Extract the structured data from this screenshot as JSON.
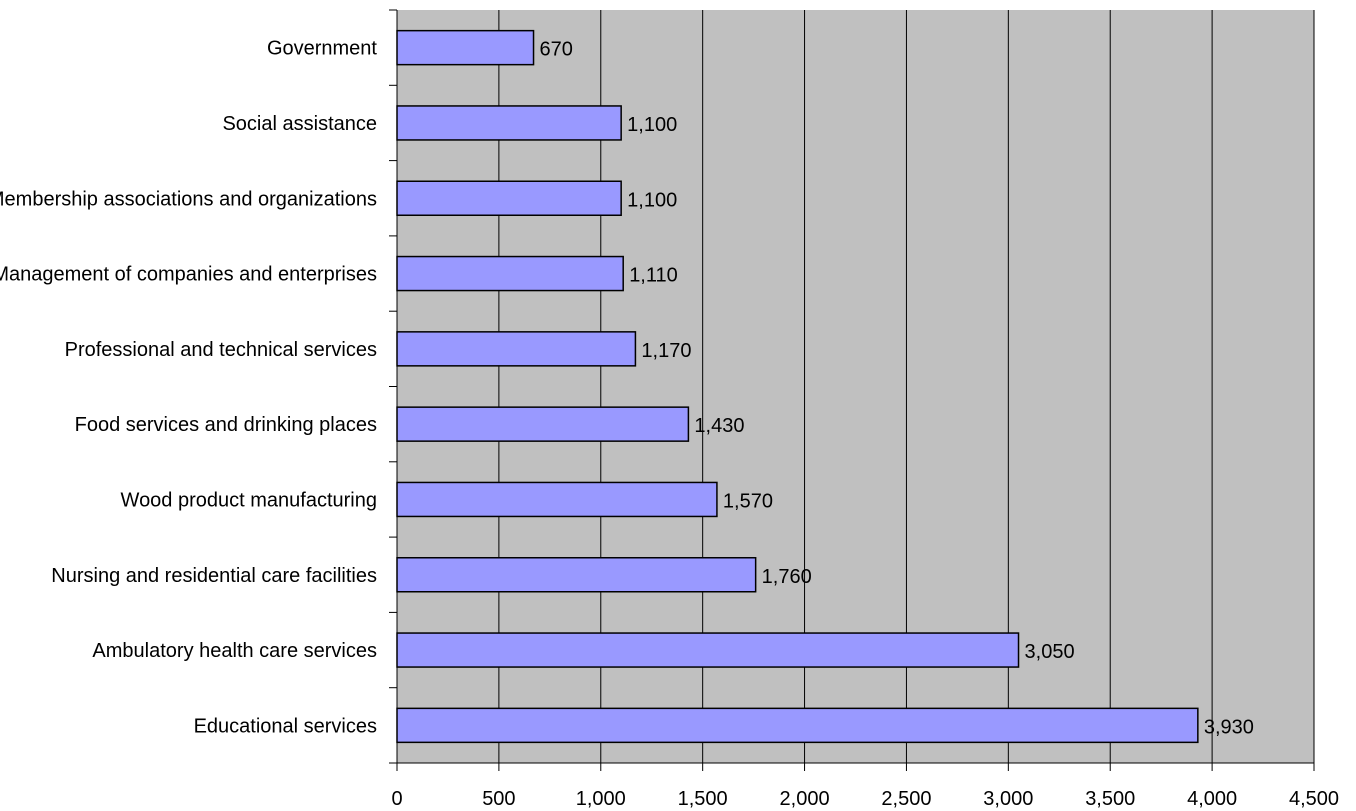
{
  "chart_data": {
    "type": "bar",
    "orientation": "horizontal",
    "categories": [
      "Government",
      "Social assistance",
      "Membership associations and organizations",
      "Management of companies and enterprises",
      "Professional and technical services",
      "Food services and drinking places",
      "Wood product manufacturing",
      "Nursing and residential care facilities",
      "Ambulatory  health care services",
      "Educational services"
    ],
    "values": [
      670,
      1100,
      1100,
      1110,
      1170,
      1430,
      1570,
      1760,
      3050,
      3930
    ],
    "data_labels": [
      "670",
      "1,100",
      "1,100",
      "1,110",
      "1,170",
      "1,430",
      "1,570",
      "1,760",
      "3,050",
      "3,930"
    ],
    "xlim": [
      0,
      4500
    ],
    "x_ticks": [
      0,
      500,
      1000,
      1500,
      2000,
      2500,
      3000,
      3500,
      4000,
      4500
    ],
    "x_tick_labels": [
      "0",
      "500",
      "1,000",
      "1,500",
      "2,000",
      "2,500",
      "3,000",
      "3,500",
      "4,000",
      "4,500"
    ],
    "title": "",
    "xlabel": "",
    "ylabel": "",
    "grid": "vertical",
    "legend": "none",
    "colors": {
      "bar_fill": "#9999ff",
      "bar_stroke": "#000000",
      "plot_background": "#c0c0c0",
      "gridline": "#000000"
    }
  }
}
